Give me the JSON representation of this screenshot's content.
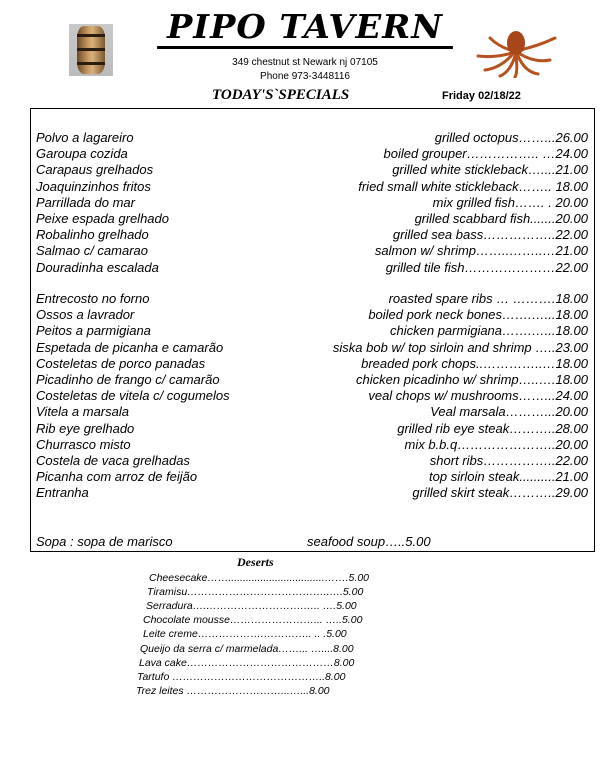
{
  "header": {
    "restaurant_name": "PIPO TAVERN",
    "address": "349 chestnut st Newark nj 07105",
    "phone": "Phone 973-3448116",
    "specials_title": "TODAY'S`SPECIALS",
    "date": "Friday 02/18/22",
    "images": [
      "barrel-photo",
      "octopus-photo"
    ]
  },
  "specials_seafood": [
    {
      "pt": "Polvo a lagareiro",
      "en": "grilled octopus……...26.00"
    },
    {
      "pt": "Garoupa cozida",
      "en": "boiled grouper…………….. …24.00"
    },
    {
      "pt": "Carapaus grelhados",
      "en": "grilled white stickleback…....21.00"
    },
    {
      "pt": "Joaquinzinhos fritos",
      "en": "fried small white stickleback…….. 18.00"
    },
    {
      "pt": "Parrillada do mar",
      "en": "mix grilled fish…….    .  20.00"
    },
    {
      "pt": "Peixe espada grelhado",
      "en": "grilled scabbard fish.......20.00"
    },
    {
      "pt": "Robalinho grelhado",
      "en": "grilled sea bass……………..22.00"
    },
    {
      "pt": "Salmao c/ camarao",
      "en": "salmon w/ shrimp……..……..…21.00"
    },
    {
      "pt": "Douradinha escalada",
      "en": "grilled tile fish…………………22.00"
    }
  ],
  "specials_meat": [
    {
      "pt": "Entrecosto no forno",
      "en": "roasted  spare ribs …   ……….18.00"
    },
    {
      "pt": "Ossos a lavrador",
      "en": "boiled pork neck bones…….…...18.00"
    },
    {
      "pt": "Peitos a parmigiana",
      "en": "chicken parmigiana…….…...18.00"
    },
    {
      "pt": "Espetada de picanha e camarão",
      "en": "siska bob w/ top sirloin and shrimp …..23.00"
    },
    {
      "pt": "Costeletas de porco panadas",
      "en": "breaded  pork chops..…………..…18.00"
    },
    {
      "pt": "Picadinho de frango c/ camarão",
      "en": "chicken picadinho w/ shrimp…..….18.00"
    },
    {
      "pt": "Costeletas de vitela c/ cogumelos",
      "en": "veal chops w/ mushrooms……...24.00"
    },
    {
      "pt": "Vitela a marsala",
      "en": "Veal marsala………...20.00"
    },
    {
      "pt": "Rib eye grelhado",
      "en": "grilled rib eye steak………..28.00"
    },
    {
      "pt": "Churrasco misto",
      "en": "mix b.b.q…………………..20.00"
    },
    {
      "pt": "Costela de vaca grelhadas",
      "en": "short ribs……………..22.00"
    },
    {
      "pt": "Picanha com arroz de feijão",
      "en": "top sirloin steak..........21.00"
    },
    {
      "pt": "Entranha",
      "en": "grilled skirt steak………..29.00"
    }
  ],
  "soup": {
    "pt": "Sopa : sopa de marisco",
    "en": "seafood  soup…..5.00"
  },
  "desserts": {
    "title": "Deserts",
    "items": [
      "Cheesecake…….................................…….5.00",
      "Tiramisu…………………………………..….5.00",
      "Serradura….……………………….….. ….5.00",
      "Chocolate mousse……………………... …..5.00",
      "Leite creme……………….…………..  .. .5.00",
      "Queijo da serra c/ marmelada……... …....8.00",
      "Lava cake……………………………………8.00",
      "Tartufo ……………………………………..8.00",
      "Trez leites ………………………...…...8.00"
    ]
  }
}
